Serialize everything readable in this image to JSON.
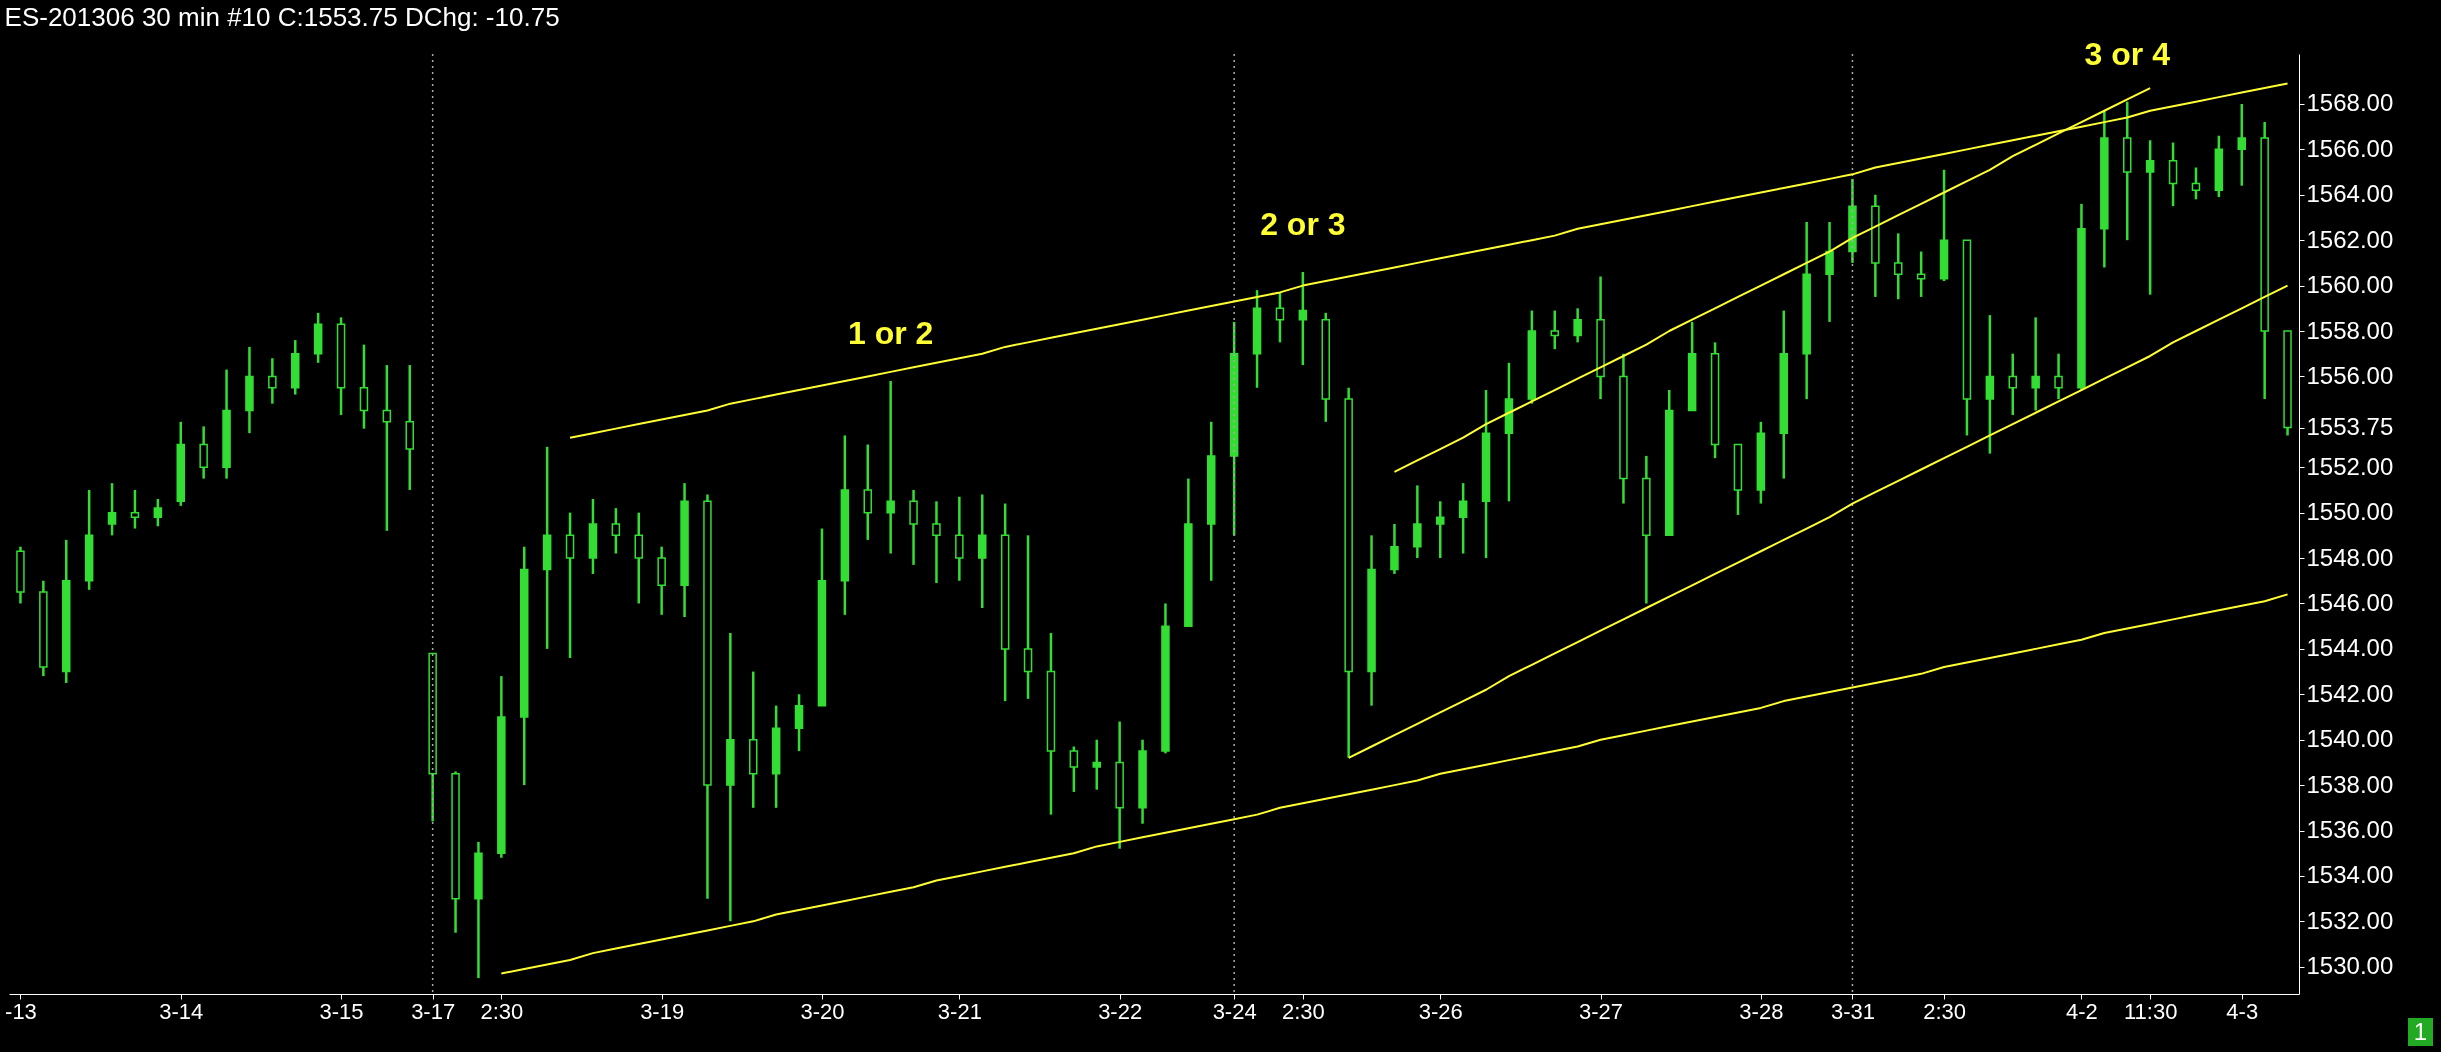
{
  "chart_data": {
    "type": "candlestick",
    "title": "ES-201306 30 min  #10  C:1553.75  DChg: -10.75",
    "color": "#33dd33",
    "categories": [
      "-13",
      null,
      null,
      null,
      null,
      null,
      null,
      "3-14",
      null,
      null,
      null,
      null,
      null,
      null,
      "3-15",
      null,
      null,
      null,
      "3-17",
      null,
      null,
      "2:30",
      null,
      null,
      null,
      null,
      null,
      null,
      "3-19",
      null,
      null,
      null,
      null,
      null,
      null,
      "3-20",
      null,
      null,
      null,
      null,
      null,
      "3-21",
      null,
      null,
      null,
      null,
      null,
      null,
      "3-22",
      null,
      null,
      null,
      null,
      "3-24",
      null,
      null,
      "2:30",
      null,
      null,
      null,
      null,
      null,
      "3-26",
      null,
      null,
      null,
      null,
      null,
      null,
      "3-27",
      null,
      null,
      null,
      null,
      null,
      null,
      "3-28",
      null,
      null,
      null,
      "3-31",
      null,
      null,
      null,
      "2:30",
      null,
      null,
      null,
      null,
      null,
      "4-2",
      null,
      null,
      "11:30",
      null,
      null,
      null,
      "4-3",
      null,
      null
    ],
    "ohlc": [
      [
        1548.3,
        1548.5,
        1546,
        1546.5
      ],
      [
        1546.5,
        1547,
        1542.8,
        1543.2
      ],
      [
        1543,
        1548.8,
        1542.5,
        1547
      ],
      [
        1547,
        1551,
        1546.6,
        1549
      ],
      [
        1549.5,
        1551.3,
        1549,
        1550
      ],
      [
        1550,
        1551,
        1549.3,
        1549.8
      ],
      [
        1549.8,
        1550.6,
        1549.4,
        1550.2
      ],
      [
        1550.5,
        1554,
        1550.3,
        1553
      ],
      [
        1553,
        1553.8,
        1551.5,
        1552
      ],
      [
        1552,
        1556.3,
        1551.5,
        1554.5
      ],
      [
        1554.5,
        1557.3,
        1553.5,
        1556
      ],
      [
        1556,
        1556.8,
        1554.8,
        1555.5
      ],
      [
        1555.5,
        1557.6,
        1555.2,
        1557
      ],
      [
        1557,
        1558.8,
        1556.6,
        1558.3
      ],
      [
        1558.3,
        1558.6,
        1554.3,
        1555.5
      ],
      [
        1555.5,
        1557.4,
        1553.7,
        1554.5
      ],
      [
        1554.5,
        1556.5,
        1549.2,
        1554
      ],
      [
        1554,
        1556.5,
        1551,
        1552.8
      ],
      [
        1543.8,
        1543.8,
        1536.4,
        1538.5
      ],
      [
        1538.5,
        1538.6,
        1531.5,
        1533
      ],
      [
        1533,
        1535.5,
        1529.5,
        1535
      ],
      [
        1535,
        1542.8,
        1534.8,
        1541
      ],
      [
        1541,
        1548.5,
        1538,
        1547.5
      ],
      [
        1547.5,
        1552.9,
        1544,
        1549
      ],
      [
        1549,
        1550,
        1543.6,
        1548
      ],
      [
        1548,
        1550.6,
        1547.3,
        1549.5
      ],
      [
        1549.5,
        1550.2,
        1548.2,
        1549
      ],
      [
        1549,
        1550,
        1546,
        1548
      ],
      [
        1548,
        1548.5,
        1545.5,
        1546.8
      ],
      [
        1546.8,
        1551.3,
        1545.4,
        1550.5
      ],
      [
        1550.5,
        1550.8,
        1533,
        1538
      ],
      [
        1538,
        1544.7,
        1532,
        1540
      ],
      [
        1540,
        1543,
        1537,
        1538.5
      ],
      [
        1538.5,
        1541.5,
        1537,
        1540.5
      ],
      [
        1540.5,
        1542,
        1539.5,
        1541.5
      ],
      [
        1541.5,
        1549.3,
        1541.5,
        1547
      ],
      [
        1547,
        1553.4,
        1545.5,
        1551
      ],
      [
        1551,
        1553,
        1548.8,
        1550
      ],
      [
        1550,
        1555.8,
        1548.2,
        1550.5
      ],
      [
        1550.5,
        1551,
        1547.7,
        1549.5
      ],
      [
        1549.5,
        1550.5,
        1546.9,
        1549
      ],
      [
        1549,
        1550.7,
        1547,
        1548
      ],
      [
        1548,
        1550.8,
        1545.8,
        1549
      ],
      [
        1549,
        1550.4,
        1541.7,
        1544
      ],
      [
        1544,
        1549,
        1541.8,
        1543
      ],
      [
        1543,
        1544.7,
        1536.7,
        1539.5
      ],
      [
        1539.5,
        1539.7,
        1537.7,
        1538.8
      ],
      [
        1538.8,
        1540,
        1537.8,
        1539
      ],
      [
        1539,
        1540.8,
        1535.2,
        1537
      ],
      [
        1537,
        1540,
        1536.3,
        1539.5
      ],
      [
        1539.5,
        1546,
        1539.4,
        1545
      ],
      [
        1545,
        1551.5,
        1545,
        1549.5
      ],
      [
        1549.5,
        1554,
        1547,
        1552.5
      ],
      [
        1552.5,
        1558.4,
        1549,
        1557
      ],
      [
        1557,
        1559.8,
        1555.5,
        1559
      ],
      [
        1559,
        1559.7,
        1557.5,
        1558.5
      ],
      [
        1558.5,
        1560.6,
        1556.5,
        1558.9
      ],
      [
        1558.5,
        1558.8,
        1554,
        1555
      ],
      [
        1555,
        1555.5,
        1539.2,
        1543
      ],
      [
        1543,
        1549,
        1541.5,
        1547.5
      ],
      [
        1547.5,
        1549.5,
        1547.3,
        1548.5
      ],
      [
        1548.5,
        1551.2,
        1548,
        1549.5
      ],
      [
        1549.5,
        1550.5,
        1548,
        1549.8
      ],
      [
        1549.8,
        1551.3,
        1548.2,
        1550.5
      ],
      [
        1550.5,
        1555.4,
        1548,
        1553.5
      ],
      [
        1553.5,
        1556.6,
        1550.5,
        1555
      ],
      [
        1555,
        1558.9,
        1554.8,
        1558
      ],
      [
        1558,
        1558.9,
        1557.2,
        1557.8
      ],
      [
        1557.8,
        1559,
        1557.5,
        1558.5
      ],
      [
        1558.5,
        1560.4,
        1555,
        1556
      ],
      [
        1556,
        1557,
        1550.4,
        1551.5
      ],
      [
        1551.5,
        1552.5,
        1546,
        1549
      ],
      [
        1549,
        1555.4,
        1549,
        1554.5
      ],
      [
        1554.5,
        1558.4,
        1554.5,
        1557
      ],
      [
        1557,
        1557.5,
        1552.4,
        1553
      ],
      [
        1553,
        1553,
        1549.9,
        1551
      ],
      [
        1551,
        1554,
        1550.4,
        1553.5
      ],
      [
        1553.5,
        1558.9,
        1551.5,
        1557
      ],
      [
        1557,
        1562.8,
        1555,
        1560.5
      ],
      [
        1560.5,
        1562.8,
        1558.4,
        1561.5
      ],
      [
        1561.5,
        1564.7,
        1561,
        1563.5
      ],
      [
        1563.5,
        1564,
        1559.5,
        1561
      ],
      [
        1561,
        1562.3,
        1559.4,
        1560.5
      ],
      [
        1560.5,
        1561.5,
        1559.5,
        1560.3
      ],
      [
        1560.3,
        1565.1,
        1560.2,
        1562
      ],
      [
        1562,
        1562,
        1553.4,
        1555
      ],
      [
        1555,
        1558.7,
        1552.6,
        1556
      ],
      [
        1556,
        1557,
        1554.3,
        1555.5
      ],
      [
        1555.5,
        1558.6,
        1554.5,
        1556
      ],
      [
        1556,
        1557,
        1555,
        1555.5
      ],
      [
        1555.5,
        1563.6,
        1555.4,
        1562.5
      ],
      [
        1562.5,
        1567.7,
        1560.8,
        1566.5
      ],
      [
        1566.5,
        1568.1,
        1562,
        1565
      ],
      [
        1565,
        1566.4,
        1559.6,
        1565.5
      ],
      [
        1565.5,
        1566.3,
        1563.5,
        1564.5
      ],
      [
        1564.5,
        1565.2,
        1563.8,
        1564.2
      ],
      [
        1564.2,
        1566.6,
        1563.9,
        1566
      ],
      [
        1566,
        1568,
        1564.4,
        1566.5
      ],
      [
        1566.5,
        1567.2,
        1555,
        1558
      ],
      [
        1558,
        1558,
        1553.4,
        1553.75
      ]
    ],
    "series": [
      {
        "type": "line",
        "color": "#ffff33",
        "values": [
          null,
          null,
          null,
          null,
          null,
          null,
          null,
          null,
          null,
          null,
          null,
          null,
          null,
          null,
          null,
          null,
          null,
          null,
          null,
          null,
          null,
          null,
          null,
          null,
          1553.3,
          1553.5,
          1553.7,
          1553.9,
          1554.1,
          1554.3,
          1554.5,
          1554.8,
          1555.0,
          1555.2,
          1555.4,
          1555.6,
          1555.8,
          1556.0,
          1556.2,
          1556.4,
          1556.6,
          1556.8,
          1557.0,
          1557.3,
          1557.5,
          1557.7,
          1557.9,
          1558.1,
          1558.3,
          1558.5,
          1558.7,
          1558.9,
          1559.1,
          1559.3,
          1559.5,
          1559.7,
          1560.0,
          1560.2,
          1560.4,
          1560.6,
          1560.8,
          1561.0,
          1561.2,
          1561.4,
          1561.6,
          1561.8,
          1562.0,
          1562.2,
          1562.5,
          1562.7,
          1562.9,
          1563.1,
          1563.3,
          1563.5,
          1563.7,
          1563.9,
          1564.1,
          1564.3,
          1564.5,
          1564.7,
          1564.9,
          1565.2,
          1565.4,
          1565.6,
          1565.8,
          1566.0,
          1566.2,
          1566.4,
          1566.6,
          1566.8,
          1567.0,
          1567.2,
          1567.4,
          1567.7,
          1567.9,
          1568.1,
          1568.3,
          1568.5,
          1568.7,
          1568.9
        ]
      },
      {
        "type": "line",
        "color": "#ffff33",
        "values": [
          null,
          null,
          null,
          null,
          null,
          null,
          null,
          null,
          null,
          null,
          null,
          null,
          null,
          null,
          null,
          null,
          null,
          null,
          null,
          null,
          null,
          1529.7,
          1529.9,
          1530.1,
          1530.3,
          1530.6,
          1530.8,
          1531.0,
          1531.2,
          1531.4,
          1531.6,
          1531.8,
          1532.0,
          1532.3,
          1532.5,
          1532.7,
          1532.9,
          1533.1,
          1533.3,
          1533.5,
          1533.8,
          1534.0,
          1534.2,
          1534.4,
          1534.6,
          1534.8,
          1535.0,
          1535.3,
          1535.5,
          1535.7,
          1535.9,
          1536.1,
          1536.3,
          1536.5,
          1536.7,
          1537.0,
          1537.2,
          1537.4,
          1537.6,
          1537.8,
          1538.0,
          1538.2,
          1538.5,
          1538.7,
          1538.9,
          1539.1,
          1539.3,
          1539.5,
          1539.7,
          1540.0,
          1540.2,
          1540.4,
          1540.6,
          1540.8,
          1541.0,
          1541.2,
          1541.4,
          1541.7,
          1541.9,
          1542.1,
          1542.3,
          1542.5,
          1542.7,
          1542.9,
          1543.2,
          1543.4,
          1543.6,
          1543.8,
          1544.0,
          1544.2,
          1544.4,
          1544.7,
          1544.9,
          1545.1,
          1545.3,
          1545.5,
          1545.7,
          1545.9,
          1546.1,
          1546.4
        ]
      },
      {
        "type": "line",
        "color": "#ffff33",
        "values": [
          null,
          null,
          null,
          null,
          null,
          null,
          null,
          null,
          null,
          null,
          null,
          null,
          null,
          null,
          null,
          null,
          null,
          null,
          null,
          null,
          null,
          null,
          null,
          null,
          null,
          null,
          null,
          null,
          null,
          null,
          null,
          null,
          null,
          null,
          null,
          null,
          null,
          null,
          null,
          null,
          null,
          null,
          null,
          null,
          null,
          null,
          null,
          null,
          null,
          null,
          null,
          null,
          null,
          null,
          null,
          null,
          null,
          null,
          1539.2,
          1539.7,
          1540.2,
          1540.7,
          1541.2,
          1541.7,
          1542.2,
          1542.8,
          1543.3,
          1543.8,
          1544.3,
          1544.8,
          1545.3,
          1545.8,
          1546.3,
          1546.8,
          1547.3,
          1547.8,
          1548.3,
          1548.8,
          1549.3,
          1549.8,
          1550.4,
          1550.9,
          1551.4,
          1551.9,
          1552.4,
          1552.9,
          1553.4,
          1553.9,
          1554.4,
          1554.9,
          1555.4,
          1555.9,
          1556.4,
          1556.9,
          1557.5,
          1558.0,
          1558.5,
          1559.0,
          1559.5,
          1560.0
        ]
      },
      {
        "type": "line",
        "color": "#ffff33",
        "values": [
          null,
          null,
          null,
          null,
          null,
          null,
          null,
          null,
          null,
          null,
          null,
          null,
          null,
          null,
          null,
          null,
          null,
          null,
          null,
          null,
          null,
          null,
          null,
          null,
          null,
          null,
          null,
          null,
          null,
          null,
          null,
          null,
          null,
          null,
          null,
          null,
          null,
          null,
          null,
          null,
          null,
          null,
          null,
          null,
          null,
          null,
          null,
          null,
          null,
          null,
          null,
          null,
          null,
          null,
          null,
          null,
          null,
          null,
          null,
          null,
          1551.8,
          1552.3,
          1552.8,
          1553.3,
          1553.9,
          1554.4,
          1554.9,
          1555.4,
          1555.9,
          1556.4,
          1556.9,
          1557.4,
          1558.0,
          1558.5,
          1559.0,
          1559.5,
          1560.0,
          1560.5,
          1561.0,
          1561.5,
          1562.1,
          1562.6,
          1563.1,
          1563.6,
          1564.1,
          1564.6,
          1565.1,
          1565.7,
          1566.2,
          1566.7,
          1567.2,
          1567.7,
          1568.2,
          1568.7,
          null,
          null,
          null,
          null,
          null,
          null
        ]
      }
    ],
    "ylim": [
      1528.8,
      1570.2
    ],
    "yticks": [
      {
        "value": 1530,
        "label": "1530.00"
      },
      {
        "value": 1532,
        "label": "1532.00"
      },
      {
        "value": 1534,
        "label": "1534.00"
      },
      {
        "value": 1536,
        "label": "1536.00"
      },
      {
        "value": 1538,
        "label": "1538.00"
      },
      {
        "value": 1540,
        "label": "1540.00"
      },
      {
        "value": 1542,
        "label": "1542.00"
      },
      {
        "value": 1544,
        "label": "1544.00"
      },
      {
        "value": 1546,
        "label": "1546.00"
      },
      {
        "value": 1548,
        "label": "1548.00"
      },
      {
        "value": 1550,
        "label": "1550.00"
      },
      {
        "value": 1552,
        "label": "1552.00"
      },
      {
        "value": 1553.75,
        "label": "1553.75"
      },
      {
        "value": 1556,
        "label": "1556.00"
      },
      {
        "value": 1558,
        "label": "1558.00"
      },
      {
        "value": 1560,
        "label": "1560.00"
      },
      {
        "value": 1562,
        "label": "1562.00"
      },
      {
        "value": 1564,
        "label": "1564.00"
      },
      {
        "value": 1566,
        "label": "1566.00"
      },
      {
        "value": 1568,
        "label": "1568.00"
      }
    ],
    "ref_lines": [
      {
        "axis": "x",
        "value": "3-17",
        "line_style": "dotted",
        "color": "#aaaaaa"
      },
      {
        "axis": "x",
        "value": "3-24",
        "line_style": "dotted",
        "color": "#aaaaaa"
      },
      {
        "axis": "x",
        "value": "3-31",
        "line_style": "dotted",
        "color": "#aaaaaa"
      }
    ],
    "annotations": [
      "1 or 2",
      "2 or 3",
      "3 or 4",
      "1"
    ]
  }
}
